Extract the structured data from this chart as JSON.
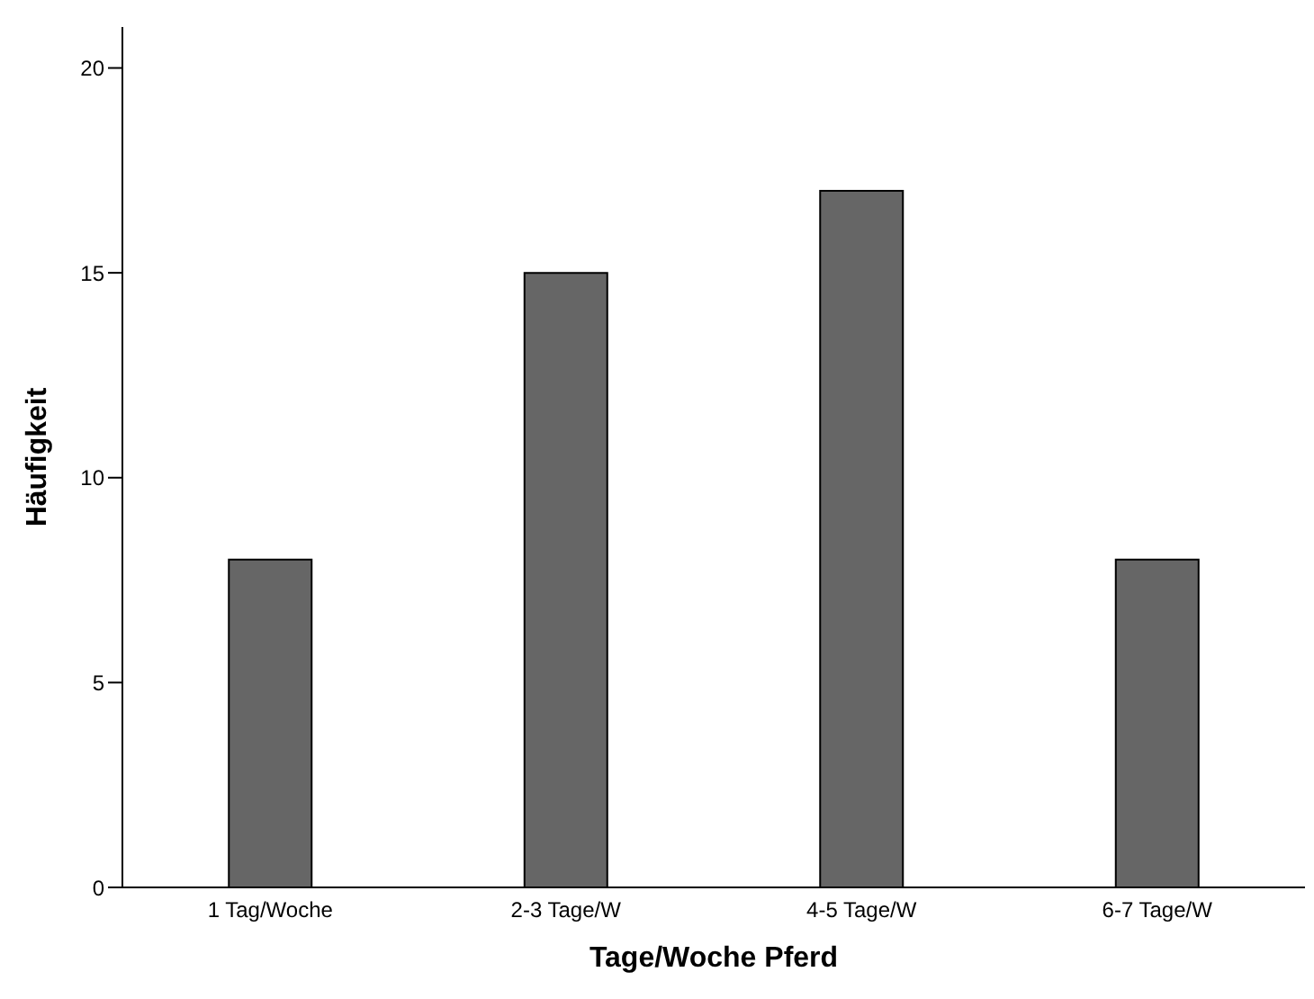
{
  "chart_data": {
    "type": "bar",
    "xlabel": "Tage/Woche Pferd",
    "ylabel": "Häufigkeit",
    "categories": [
      "1 Tag/Woche",
      "2-3 Tage/W",
      "4-5 Tage/W",
      "6-7 Tage/W"
    ],
    "values": [
      8,
      15,
      17,
      8
    ],
    "color": "#666666",
    "ylim": [
      0,
      21
    ],
    "yticks": [
      0,
      5,
      10,
      15,
      20
    ],
    "grid": false,
    "legend": false
  }
}
